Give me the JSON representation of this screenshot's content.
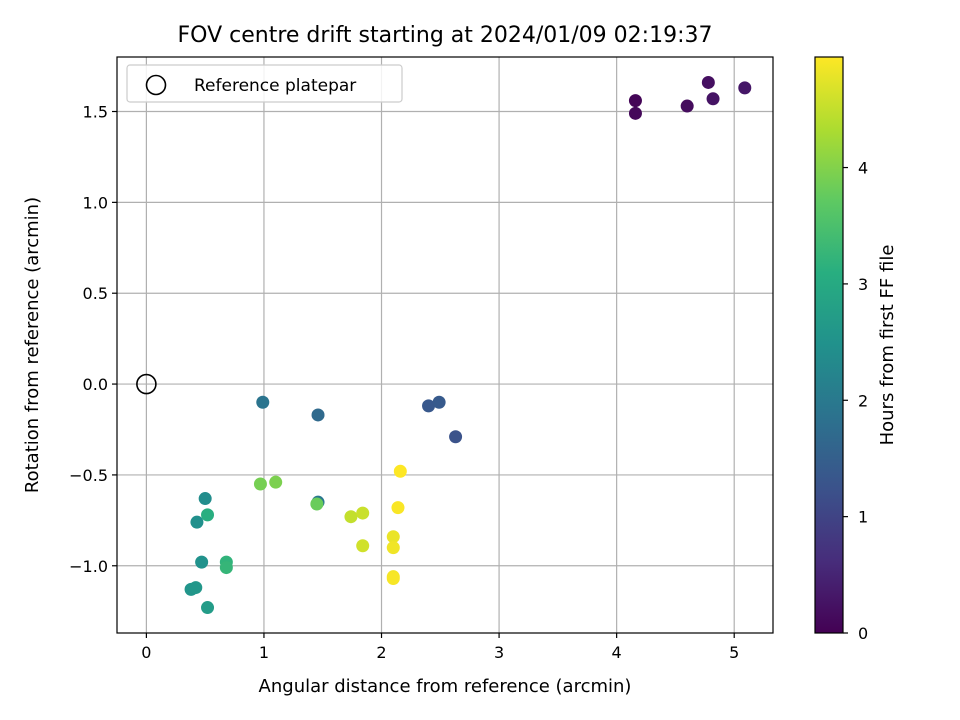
{
  "chart_data": {
    "type": "scatter",
    "title": "FOV centre drift starting at 2024/01/09 02:19:37",
    "xlabel": "Angular distance from reference (arcmin)",
    "ylabel": "Rotation from reference (arcmin)",
    "xlim": [
      -0.25,
      5.33
    ],
    "ylim": [
      -1.37,
      1.8
    ],
    "x_ticks": [
      0,
      1,
      2,
      3,
      4,
      5
    ],
    "y_ticks": [
      -1.0,
      -0.5,
      0.0,
      0.5,
      1.0,
      1.5
    ],
    "x_tick_labels": [
      "0",
      "1",
      "2",
      "3",
      "4",
      "5"
    ],
    "y_tick_labels": [
      "−1.0",
      "−0.5",
      "0.0",
      "0.5",
      "1.0",
      "1.5"
    ],
    "grid": true,
    "legend": {
      "placement": "top-left",
      "entries": [
        {
          "label": "Reference platepar",
          "marker": "open-circle"
        }
      ]
    },
    "reference_point": {
      "x": 0.0,
      "y": 0.0
    },
    "colorbar": {
      "label": "Hours from first FF file",
      "range": [
        0,
        4.95
      ],
      "ticks": [
        0,
        1,
        2,
        3,
        4
      ],
      "tick_labels": [
        "0",
        "1",
        "2",
        "3",
        "4"
      ],
      "colormap": "viridis"
    },
    "points": [
      {
        "x": 4.16,
        "y": 1.56,
        "c": 0.05
      },
      {
        "x": 4.16,
        "y": 1.49,
        "c": 0.1
      },
      {
        "x": 4.6,
        "y": 1.53,
        "c": 0.15
      },
      {
        "x": 4.78,
        "y": 1.66,
        "c": 0.2
      },
      {
        "x": 4.82,
        "y": 1.57,
        "c": 0.25
      },
      {
        "x": 5.09,
        "y": 1.63,
        "c": 0.3
      },
      {
        "x": 2.63,
        "y": -0.29,
        "c": 1.25
      },
      {
        "x": 2.4,
        "y": -0.12,
        "c": 1.35
      },
      {
        "x": 2.49,
        "y": -0.1,
        "c": 1.4
      },
      {
        "x": 1.46,
        "y": -0.17,
        "c": 1.7
      },
      {
        "x": 0.99,
        "y": -0.1,
        "c": 1.9
      },
      {
        "x": 1.46,
        "y": -0.65,
        "c": 1.95
      },
      {
        "x": 0.5,
        "y": -0.63,
        "c": 2.4
      },
      {
        "x": 0.43,
        "y": -0.76,
        "c": 2.45
      },
      {
        "x": 0.47,
        "y": -0.98,
        "c": 2.5
      },
      {
        "x": 0.38,
        "y": -1.13,
        "c": 2.55
      },
      {
        "x": 0.42,
        "y": -1.12,
        "c": 2.6
      },
      {
        "x": 0.52,
        "y": -1.23,
        "c": 2.7
      },
      {
        "x": 0.52,
        "y": -0.72,
        "c": 3.1
      },
      {
        "x": 0.68,
        "y": -0.98,
        "c": 3.2
      },
      {
        "x": 0.68,
        "y": -1.01,
        "c": 3.25
      },
      {
        "x": 1.45,
        "y": -0.66,
        "c": 3.8
      },
      {
        "x": 0.97,
        "y": -0.55,
        "c": 3.9
      },
      {
        "x": 1.1,
        "y": -0.54,
        "c": 3.95
      },
      {
        "x": 1.74,
        "y": -0.73,
        "c": 4.5
      },
      {
        "x": 1.84,
        "y": -0.71,
        "c": 4.55
      },
      {
        "x": 1.84,
        "y": -0.89,
        "c": 4.6
      },
      {
        "x": 2.1,
        "y": -0.84,
        "c": 4.8
      },
      {
        "x": 2.1,
        "y": -0.9,
        "c": 4.85
      },
      {
        "x": 2.1,
        "y": -1.06,
        "c": 4.88
      },
      {
        "x": 2.1,
        "y": -1.07,
        "c": 4.9
      },
      {
        "x": 2.16,
        "y": -0.48,
        "c": 4.95
      },
      {
        "x": 2.14,
        "y": -0.68,
        "c": 4.92
      }
    ]
  }
}
